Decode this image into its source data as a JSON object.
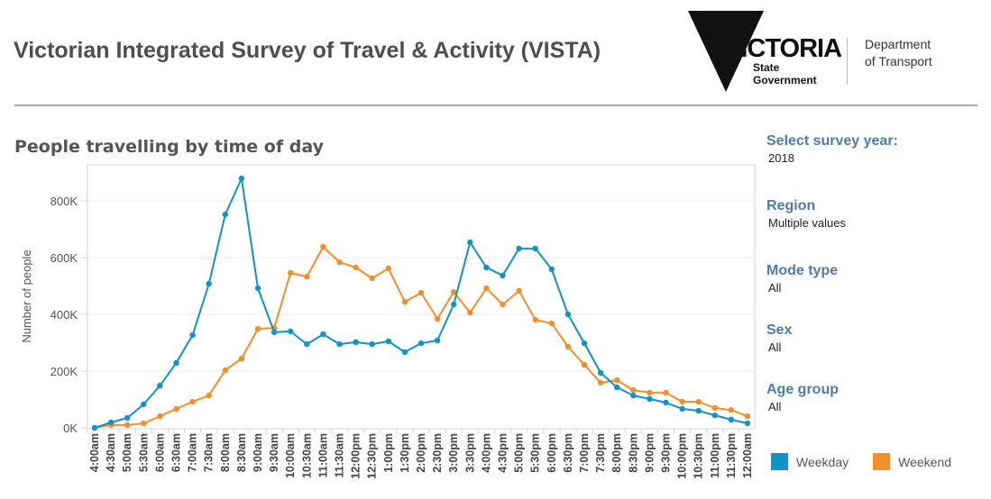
{
  "header": {
    "title": "Victorian Integrated Survey of Travel & Activity (VISTA)",
    "logo_main": "VICTORIA",
    "logo_sub_1": "State",
    "logo_sub_2": "Government",
    "dept_line_1": "Department",
    "dept_line_2": "of Transport"
  },
  "filters": [
    {
      "label": "Select survey year:",
      "value": "2018"
    },
    {
      "label": "Region",
      "value": "Multiple values"
    },
    {
      "label": "Mode type",
      "value": "All"
    },
    {
      "label": "Sex",
      "value": "All"
    },
    {
      "label": "Age group",
      "value": "All"
    }
  ],
  "colors": {
    "weekday": "#1192c8",
    "weekend": "#f28e2b"
  },
  "chart_data": {
    "type": "line",
    "title": "People travelling by time of day",
    "xlabel": "",
    "ylabel": "Number of people",
    "ylim": [
      0,
      900000
    ],
    "yticks": [
      0,
      200000,
      400000,
      600000,
      800000
    ],
    "ytick_labels": [
      "0K",
      "200K",
      "400K",
      "600K",
      "800K"
    ],
    "grid": true,
    "legend": "bottom-right",
    "categories": [
      "4:00am",
      "4:30am",
      "5:00am",
      "5:30am",
      "6:00am",
      "6:30am",
      "7:00am",
      "7:30am",
      "8:00am",
      "8:30am",
      "9:00am",
      "9:30am",
      "10:00am",
      "10:30am",
      "11:00am",
      "11:30am",
      "12:00pm",
      "12:30pm",
      "1:00pm",
      "1:30pm",
      "2:00pm",
      "2:30pm",
      "3:00pm",
      "3:30pm",
      "4:00pm",
      "4:30pm",
      "5:00pm",
      "5:30pm",
      "6:00pm",
      "6:30pm",
      "7:00pm",
      "7:30pm",
      "8:00pm",
      "8:30pm",
      "9:00pm",
      "9:30pm",
      "10:00pm",
      "10:30pm",
      "11:00pm",
      "11:30pm",
      "12:00am"
    ],
    "series": [
      {
        "name": "Weekday",
        "values": [
          0,
          19000,
          35000,
          83000,
          149000,
          229000,
          327000,
          508000,
          752000,
          879000,
          492000,
          337000,
          340000,
          295000,
          330000,
          295000,
          302000,
          295000,
          305000,
          267000,
          298000,
          308000,
          435000,
          654000,
          565000,
          537000,
          632000,
          632000,
          559000,
          400000,
          298000,
          194000,
          143000,
          114000,
          102000,
          89000,
          67000,
          60000,
          44000,
          29000,
          16000
        ]
      },
      {
        "name": "Weekend",
        "values": [
          0,
          10000,
          10000,
          16000,
          41000,
          67000,
          92000,
          114000,
          203000,
          244000,
          349000,
          352000,
          546000,
          533000,
          638000,
          584000,
          565000,
          527000,
          562000,
          444000,
          476000,
          384000,
          479000,
          406000,
          492000,
          435000,
          483000,
          381000,
          368000,
          286000,
          222000,
          159000,
          168000,
          133000,
          124000,
          124000,
          92000,
          92000,
          70000,
          63000,
          41000
        ]
      }
    ]
  }
}
